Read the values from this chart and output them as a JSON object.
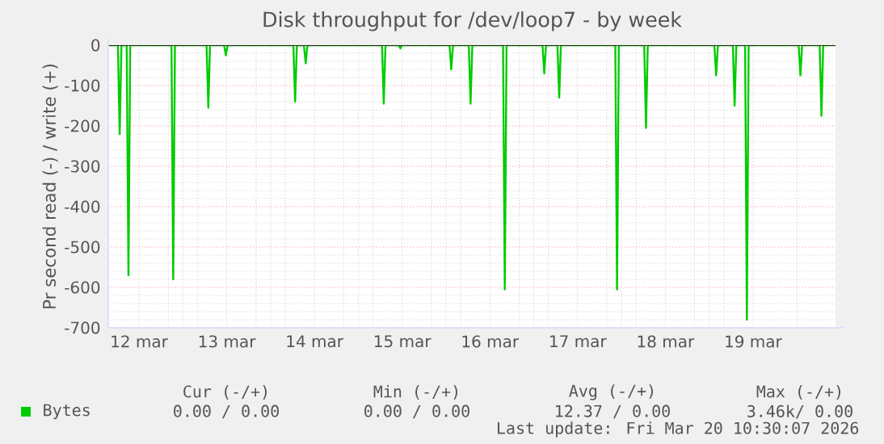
{
  "chart_data": {
    "type": "line",
    "title": "Disk throughput for /dev/loop7 - by week",
    "ylabel": "Pr second read (-) / write (+)",
    "x": [
      "2026-03-12T03:36",
      "2026-03-12T06:14",
      "2026-03-12T06:43",
      "2026-03-12T07:12",
      "2026-03-12T08:38",
      "2026-03-12T09:07",
      "2026-03-12T09:36",
      "2026-03-12T20:53",
      "2026-03-12T21:22",
      "2026-03-12T21:50",
      "2026-03-13T06:29",
      "2026-03-13T06:58",
      "2026-03-13T07:26",
      "2026-03-13T11:17",
      "2026-03-13T11:46",
      "2026-03-13T12:14",
      "2026-03-14T06:14",
      "2026-03-14T06:43",
      "2026-03-14T07:12",
      "2026-03-14T09:07",
      "2026-03-14T09:36",
      "2026-03-14T10:05",
      "2026-03-15T06:29",
      "2026-03-15T06:58",
      "2026-03-15T07:26",
      "2026-03-15T11:02",
      "2026-03-15T11:31",
      "2026-03-15T12:00",
      "2026-03-16T00:58",
      "2026-03-16T01:26",
      "2026-03-16T01:55",
      "2026-03-16T06:14",
      "2026-03-16T06:43",
      "2026-03-16T07:12",
      "2026-03-16T15:36",
      "2026-03-16T16:05",
      "2026-03-16T16:34",
      "2026-03-17T02:24",
      "2026-03-17T02:53",
      "2026-03-17T03:22",
      "2026-03-17T06:29",
      "2026-03-17T06:58",
      "2026-03-17T07:26",
      "2026-03-17T22:19",
      "2026-03-17T22:48",
      "2026-03-17T23:17",
      "2026-03-18T06:14",
      "2026-03-18T06:43",
      "2026-03-18T07:12",
      "2026-03-19T01:26",
      "2026-03-19T01:55",
      "2026-03-19T02:24",
      "2026-03-19T06:29",
      "2026-03-19T06:58",
      "2026-03-19T07:26",
      "2026-03-19T09:50",
      "2026-03-19T10:19",
      "2026-03-19T10:48",
      "2026-03-20T00:29",
      "2026-03-20T00:58",
      "2026-03-20T01:26",
      "2026-03-20T06:14",
      "2026-03-20T06:43",
      "2026-03-20T07:12",
      "2026-03-20T10:34"
    ],
    "series": [
      {
        "name": "Bytes",
        "color": "#00cc00",
        "values": [
          0,
          0,
          -220,
          0,
          0,
          -570,
          0,
          0,
          -580,
          0,
          0,
          -155,
          0,
          0,
          -25,
          0,
          0,
          -140,
          0,
          0,
          -45,
          0,
          0,
          -145,
          0,
          0,
          -8,
          0,
          0,
          -60,
          0,
          0,
          -145,
          0,
          0,
          -605,
          0,
          0,
          -70,
          0,
          0,
          -130,
          0,
          0,
          -605,
          0,
          0,
          -205,
          0,
          0,
          -75,
          0,
          0,
          -150,
          0,
          0,
          -680,
          0,
          0,
          -75,
          0,
          0,
          -175,
          0,
          0
        ]
      }
    ],
    "xlim": [
      "2026-03-12T03:36",
      "2026-03-20T10:34"
    ],
    "xticks": [
      {
        "value": "2026-03-12T12:00",
        "label": "12 mar"
      },
      {
        "value": "2026-03-13",
        "label": null
      },
      {
        "value": "2026-03-13T12:00",
        "label": "13 mar"
      },
      {
        "value": "2026-03-14",
        "label": null
      },
      {
        "value": "2026-03-14T12:00",
        "label": "14 mar"
      },
      {
        "value": "2026-03-15",
        "label": null
      },
      {
        "value": "2026-03-15T12:00",
        "label": "15 mar"
      },
      {
        "value": "2026-03-16",
        "label": null
      },
      {
        "value": "2026-03-16T12:00",
        "label": "16 mar"
      },
      {
        "value": "2026-03-17",
        "label": null
      },
      {
        "value": "2026-03-17T12:00",
        "label": "17 mar"
      },
      {
        "value": "2026-03-18",
        "label": null
      },
      {
        "value": "2026-03-18T12:00",
        "label": "18 mar"
      },
      {
        "value": "2026-03-19",
        "label": null
      },
      {
        "value": "2026-03-19T12:00",
        "label": "19 mar"
      },
      {
        "value": "2026-03-20",
        "label": null
      }
    ],
    "ylim": [
      -700,
      0
    ],
    "yticks": [
      -700,
      -600,
      -500,
      -400,
      -300,
      -200,
      -100,
      0
    ],
    "grid": true,
    "legend": "bottom",
    "marker": "none",
    "line_style": "solid",
    "annotations": [
      "Cur (-/+)",
      "Min (-/+)",
      "Avg (-/+)",
      "Max (-/+)",
      "0.00 / 0.00",
      "0.00 / 0.00",
      "12.37 / 0.00",
      "3.46k/ 0.00",
      "Last update: Fri Mar 20 10:30:07 2026"
    ]
  }
}
